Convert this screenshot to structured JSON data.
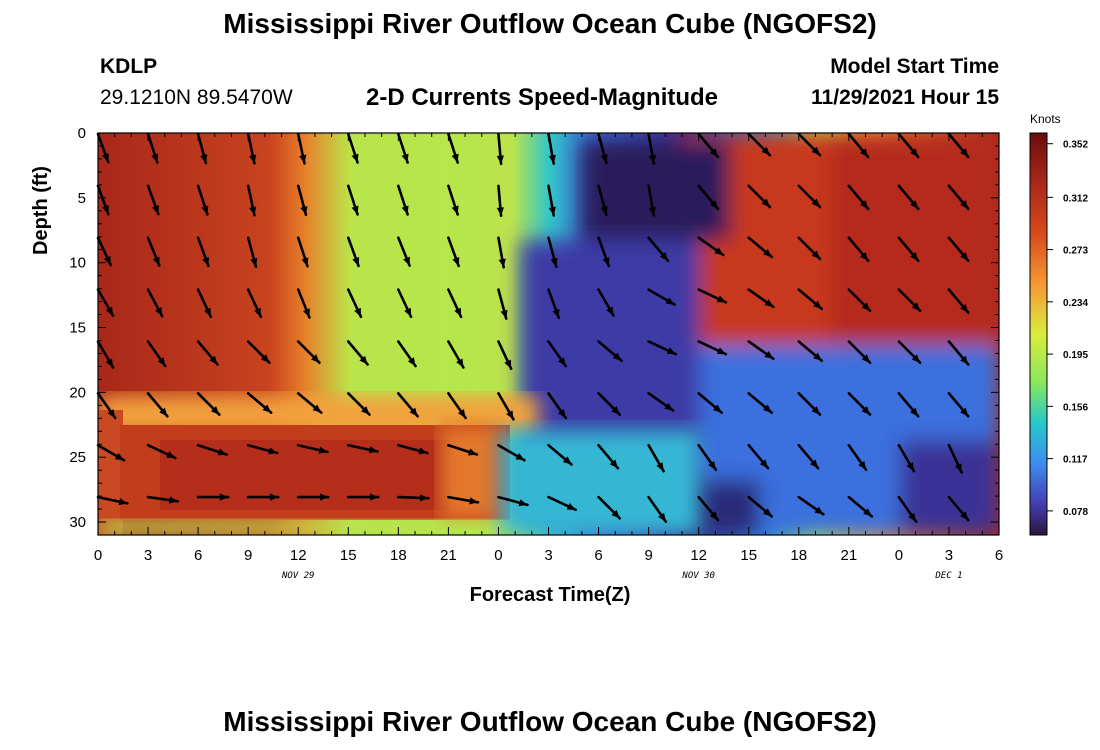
{
  "title": "Mississippi River Outflow Ocean Cube (NGOFS2)",
  "bottom_title": "Mississippi River Outflow Ocean Cube (NGOFS2)",
  "station": {
    "id": "KDLP",
    "coords": "29.1210N  89.5470W"
  },
  "subtitle": "2-D Currents Speed-Magnitude",
  "model_start": {
    "label": "Model Start Time",
    "value": "11/29/2021 Hour 15"
  },
  "chart_data": {
    "type": "heatmap",
    "xlabel": "Forecast Time(Z)",
    "ylabel": "Depth (ft)",
    "x_tick_labels": [
      "0",
      "3",
      "6",
      "9",
      "12",
      "15",
      "18",
      "21",
      "0",
      "3",
      "6",
      "9",
      "12",
      "15",
      "18",
      "21",
      "0",
      "3",
      "6"
    ],
    "x_ticks_hours": [
      0,
      3,
      6,
      9,
      12,
      15,
      18,
      21,
      24,
      27,
      30,
      33,
      36,
      39,
      42,
      45,
      48,
      51,
      54
    ],
    "xlim_hours": [
      0,
      54
    ],
    "date_labels": [
      {
        "label": "NOV 29",
        "hour": 12
      },
      {
        "label": "NOV 30",
        "hour": 36
      },
      {
        "label": "DEC 1",
        "hour": 51
      }
    ],
    "y_ticks": [
      0,
      5,
      10,
      15,
      20,
      25,
      30
    ],
    "ylim": [
      0,
      31
    ],
    "y_inverted": true,
    "colorbar": {
      "unit": "Knots",
      "ticks": [
        0.352,
        0.312,
        0.273,
        0.234,
        0.195,
        0.156,
        0.117,
        0.078
      ],
      "range": [
        0.06,
        0.36
      ]
    },
    "vector_grid": {
      "hours": [
        0,
        3,
        6,
        9,
        12,
        15,
        18,
        21,
        24,
        27,
        30,
        33,
        36,
        39,
        42,
        45,
        48,
        51
      ],
      "depths": [
        0,
        4,
        8,
        12,
        16,
        20,
        24,
        28
      ],
      "angles_deg": [
        [
          70,
          72,
          75,
          78,
          78,
          72,
          72,
          72,
          85,
          80,
          75,
          80,
          50,
          45,
          45,
          50,
          50,
          50
        ],
        [
          70,
          70,
          72,
          78,
          75,
          72,
          72,
          72,
          85,
          80,
          75,
          80,
          50,
          45,
          45,
          50,
          50,
          50
        ],
        [
          65,
          68,
          70,
          75,
          72,
          70,
          68,
          70,
          80,
          75,
          70,
          50,
          35,
          40,
          45,
          50,
          50,
          50
        ],
        [
          60,
          62,
          65,
          65,
          68,
          65,
          65,
          65,
          75,
          70,
          60,
          30,
          25,
          35,
          40,
          45,
          45,
          50
        ],
        [
          60,
          55,
          50,
          45,
          45,
          50,
          55,
          60,
          65,
          55,
          40,
          25,
          25,
          35,
          40,
          45,
          45,
          50
        ],
        [
          55,
          50,
          45,
          40,
          40,
          45,
          50,
          55,
          60,
          55,
          45,
          35,
          40,
          40,
          45,
          45,
          50,
          50
        ],
        [
          30,
          25,
          18,
          15,
          13,
          12,
          15,
          18,
          30,
          40,
          50,
          60,
          55,
          50,
          50,
          55,
          60,
          65
        ],
        [
          12,
          8,
          0,
          0,
          0,
          0,
          2,
          10,
          15,
          25,
          45,
          55,
          50,
          40,
          35,
          40,
          55,
          50
        ]
      ]
    }
  }
}
